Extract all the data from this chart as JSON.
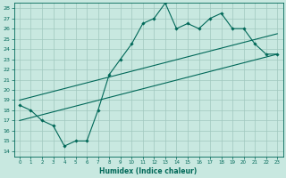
{
  "title": "",
  "xlabel": "Humidex (Indice chaleur)",
  "bg_color": "#c8e8e0",
  "grid_color": "#a0c8be",
  "line_color": "#006858",
  "xlim": [
    -0.5,
    23.5
  ],
  "ylim": [
    13.5,
    28.5
  ],
  "xticks": [
    0,
    1,
    2,
    3,
    4,
    5,
    6,
    7,
    8,
    9,
    10,
    11,
    12,
    13,
    14,
    15,
    16,
    17,
    18,
    19,
    20,
    21,
    22,
    23
  ],
  "yticks": [
    14,
    15,
    16,
    17,
    18,
    19,
    20,
    21,
    22,
    23,
    24,
    25,
    26,
    27,
    28
  ],
  "main_x": [
    0,
    1,
    2,
    3,
    4,
    5,
    6,
    7,
    8,
    9,
    10,
    11,
    12,
    13,
    14,
    15,
    16,
    17,
    18,
    19,
    20,
    21,
    22,
    23
  ],
  "main_y": [
    18.5,
    18,
    17,
    16.5,
    14.5,
    15,
    15,
    18,
    21.5,
    23,
    24.5,
    26.5,
    27,
    28.5,
    26,
    26.5,
    26,
    27,
    27.5,
    26,
    26,
    24.5,
    23.5,
    23.5
  ],
  "line2_x": [
    0,
    23
  ],
  "line2_y": [
    17.0,
    23.5
  ],
  "line3_x": [
    0,
    23
  ],
  "line3_y": [
    19.0,
    25.5
  ]
}
